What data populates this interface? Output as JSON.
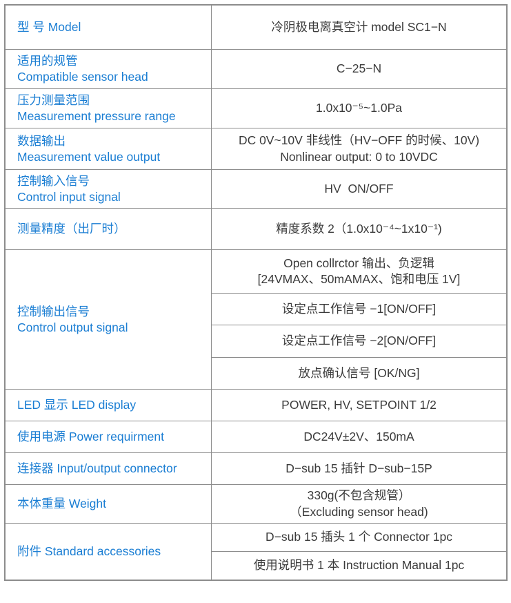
{
  "colors": {
    "label_blue": "#1b7ed3",
    "value_text": "#3b3b3b",
    "border_gray": "#8c8c8c"
  },
  "table": {
    "rows": [
      {
        "label_lines": [
          "型 号 Model"
        ],
        "values": [
          [
            "冷阴极电离真空计 model SC1−N"
          ]
        ]
      },
      {
        "label_lines": [
          "适用的规管",
          "Compatible sensor head"
        ],
        "values": [
          [
            "C−25−N"
          ]
        ]
      },
      {
        "label_lines": [
          "压力测量范围",
          "Measurement pressure range"
        ],
        "values": [
          [
            "1.0x10⁻⁵~1.0Pa"
          ]
        ]
      },
      {
        "label_lines": [
          "数据输出",
          "Measurement value output"
        ],
        "values": [
          [
            "DC 0V~10V 非线性（HV−OFF 的时候、10V)",
            "Nonlinear output: 0 to 10VDC"
          ]
        ]
      },
      {
        "label_lines": [
          "控制输入信号",
          "Control input signal"
        ],
        "values": [
          [
            "HV  ON/OFF"
          ]
        ]
      },
      {
        "label_lines": [
          "测量精度（出厂时）"
        ],
        "values": [
          [
            "精度系数 2（1.0x10⁻⁴~1x10⁻¹)"
          ]
        ]
      },
      {
        "label_lines": [
          "控制输出信号",
          "Control output signal"
        ],
        "values": [
          [
            "Open collrctor 输出、负逻辑",
            "[24VMAX、50mAMAX、饱和电压 1V]"
          ],
          [
            "设定点工作信号 −1[ON/OFF]"
          ],
          [
            "设定点工作信号 −2[ON/OFF]"
          ],
          [
            "放点确认信号 [OK/NG]"
          ]
        ]
      },
      {
        "label_lines": [
          "LED 显示 LED display"
        ],
        "values": [
          [
            "POWER, HV, SETPOINT 1/2"
          ]
        ]
      },
      {
        "label_lines": [
          "使用电源 Power requirment"
        ],
        "values": [
          [
            "DC24V±2V、150mA"
          ]
        ]
      },
      {
        "label_lines": [
          "连接器 Input/output connector"
        ],
        "values": [
          [
            "D−sub 15 插针 D−sub−15P"
          ]
        ]
      },
      {
        "label_lines": [
          "本体重量 Weight"
        ],
        "values": [
          [
            "330g(不包含规管）",
            "（Excluding sensor head)"
          ]
        ]
      },
      {
        "label_lines": [
          "附件 Standard accessories"
        ],
        "values": [
          [
            "D−sub 15 插头 1 个 Connector 1pc"
          ],
          [
            "使用说明书 1 本 Instruction Manual 1pc"
          ]
        ]
      }
    ]
  }
}
